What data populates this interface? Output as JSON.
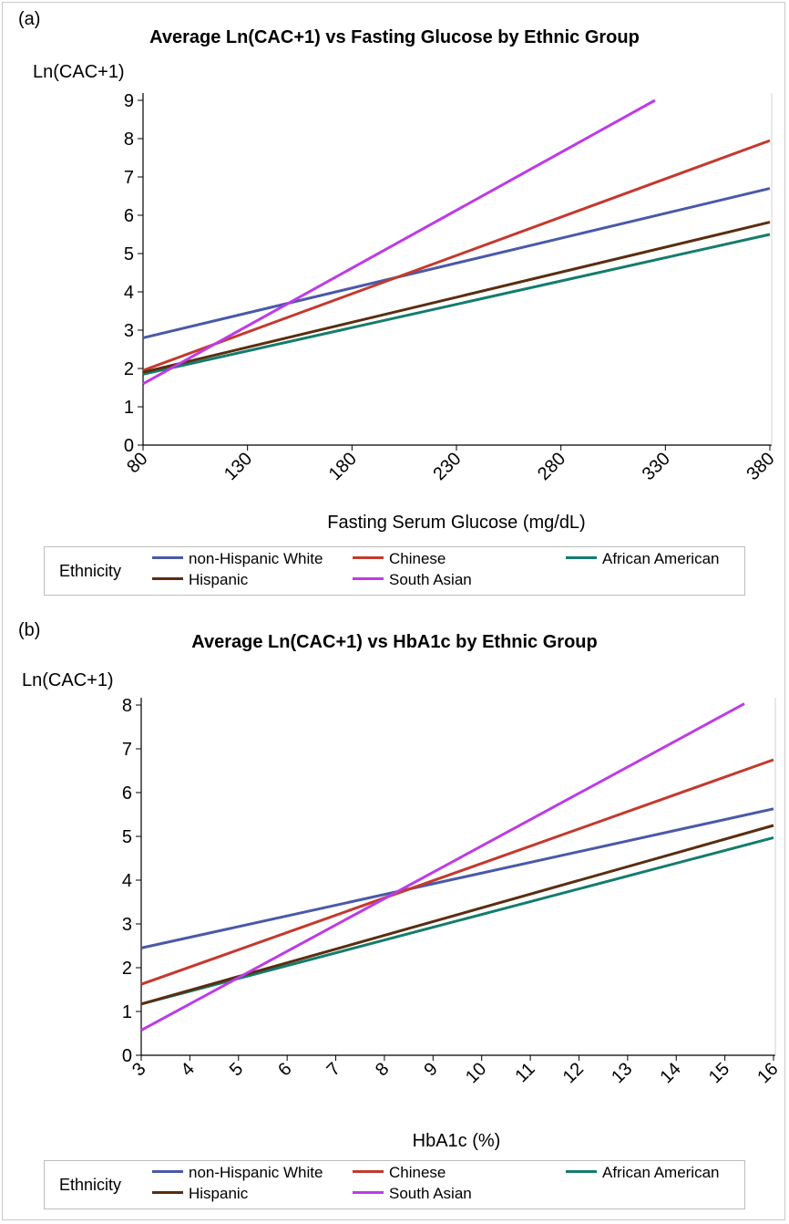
{
  "legend_title": "Ethnicity",
  "chart_data": [
    {
      "type": "line",
      "panel": "(a)",
      "title": "Average Ln(CAC+1) vs Fasting Glucose by Ethnic Group",
      "xlabel": "Fasting Serum Glucose (mg/dL)",
      "ylabel": "Ln(CAC+1)",
      "xlim": [
        80,
        380
      ],
      "ylim": [
        0,
        9
      ],
      "xticks": [
        80,
        130,
        180,
        230,
        280,
        330,
        380
      ],
      "yticks": [
        0,
        1,
        2,
        3,
        4,
        5,
        6,
        7,
        8,
        9
      ],
      "grid": false,
      "legend_position": "bottom",
      "series": [
        {
          "name": "non-Hispanic White",
          "color": "#4a59a8",
          "x": [
            80,
            380
          ],
          "y": [
            2.8,
            6.7
          ]
        },
        {
          "name": "Chinese",
          "color": "#c4392d",
          "x": [
            80,
            380
          ],
          "y": [
            1.95,
            7.95
          ]
        },
        {
          "name": "African American",
          "color": "#137d6c",
          "x": [
            80,
            380
          ],
          "y": [
            1.85,
            5.5
          ]
        },
        {
          "name": "Hispanic",
          "color": "#5a2d10",
          "x": [
            80,
            380
          ],
          "y": [
            1.9,
            5.82
          ]
        },
        {
          "name": "South Asian",
          "color": "#bd3be6",
          "x": [
            80,
            325
          ],
          "y": [
            1.6,
            9.0
          ]
        }
      ]
    },
    {
      "type": "line",
      "panel": "(b)",
      "title": "Average Ln(CAC+1) vs HbA1c by Ethnic Group",
      "xlabel": "HbA1c (%)",
      "ylabel": "Ln(CAC+1)",
      "xlim": [
        3,
        16
      ],
      "ylim": [
        0,
        8
      ],
      "xticks": [
        3,
        4,
        5,
        6,
        7,
        8,
        9,
        10,
        11,
        12,
        13,
        14,
        15,
        16
      ],
      "yticks": [
        0,
        1,
        2,
        3,
        4,
        5,
        6,
        7,
        8
      ],
      "grid": false,
      "legend_position": "bottom",
      "series": [
        {
          "name": "non-Hispanic White",
          "color": "#4a59a8",
          "x": [
            3,
            16
          ],
          "y": [
            2.45,
            5.63
          ]
        },
        {
          "name": "Chinese",
          "color": "#c4392d",
          "x": [
            3,
            16
          ],
          "y": [
            1.62,
            6.75
          ]
        },
        {
          "name": "African American",
          "color": "#137d6c",
          "x": [
            3,
            16
          ],
          "y": [
            1.17,
            4.97
          ]
        },
        {
          "name": "Hispanic",
          "color": "#5a2d10",
          "x": [
            3,
            16
          ],
          "y": [
            1.17,
            5.25
          ]
        },
        {
          "name": "South Asian",
          "color": "#bd3be6",
          "x": [
            3,
            15.4
          ],
          "y": [
            0.57,
            8.03
          ]
        }
      ]
    }
  ]
}
